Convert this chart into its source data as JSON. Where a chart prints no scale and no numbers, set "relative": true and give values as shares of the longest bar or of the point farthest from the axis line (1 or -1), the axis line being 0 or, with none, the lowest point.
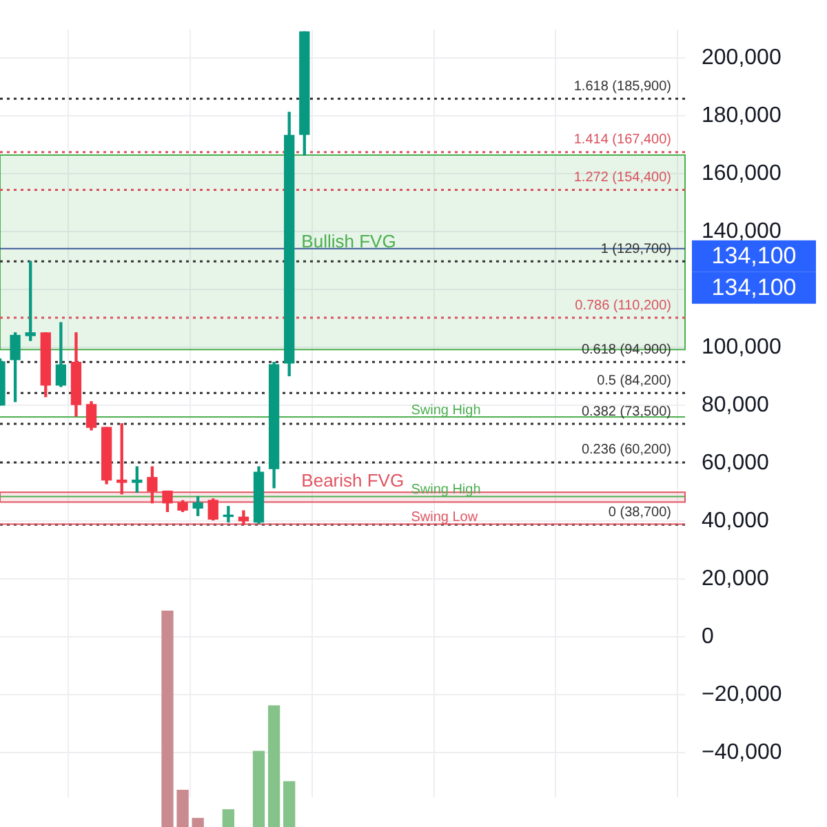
{
  "chart_data": [
    {
      "type": "candlestick",
      "categories": [
        null,
        null,
        null,
        null,
        null,
        null,
        null,
        null,
        null,
        null,
        null,
        null,
        null,
        null,
        null,
        null,
        null,
        null,
        null,
        null,
        null,
        null,
        null,
        null,
        null,
        null,
        null,
        null,
        null,
        null,
        null,
        null,
        null,
        null,
        null,
        null,
        null,
        null,
        null,
        null,
        null,
        null,
        null,
        null,
        null,
        null
      ],
      "ohlc": [
        [
          80000,
          96000,
          80000,
          95000
        ],
        [
          95700,
          105000,
          81200,
          104100
        ],
        [
          104000,
          129700,
          102300,
          105000
        ],
        [
          105000,
          105000,
          82900,
          86900
        ],
        [
          86900,
          108500,
          86400,
          93900
        ],
        [
          94800,
          105000,
          76200,
          80200
        ],
        [
          80200,
          81200,
          71400,
          72300
        ],
        [
          72300,
          72300,
          52800,
          54100
        ],
        [
          54100,
          73600,
          49300,
          53300
        ],
        [
          53300,
          58700,
          49900,
          54100
        ],
        [
          55000,
          58700,
          46200,
          50300
        ],
        [
          50300,
          50300,
          43200,
          46200
        ],
        [
          46200,
          47000,
          43200,
          43700
        ],
        [
          44400,
          48400,
          41800,
          46200
        ],
        [
          47100,
          47600,
          40300,
          40600
        ],
        [
          41500,
          45000,
          39600,
          42000
        ],
        [
          41300,
          43500,
          38700,
          40000
        ],
        [
          39600,
          58700,
          39100,
          56800
        ],
        [
          58000,
          94800,
          51400,
          94000
        ],
        [
          94500,
          181200,
          90100,
          173200
        ],
        [
          173500,
          209000,
          166400,
          209000
        ],
        null,
        null,
        null,
        null,
        null,
        null,
        null,
        null,
        null,
        null,
        null,
        null,
        null,
        null,
        null,
        null,
        null,
        null,
        null,
        null,
        null,
        null,
        null,
        null,
        null
      ],
      "colors": [
        "#089981",
        "#089981",
        "#089981",
        "#f23645",
        "#089981",
        "#f23645",
        "#f23645",
        "#f23645",
        "#f23645",
        "#089981",
        "#f23645",
        "#f23645",
        "#f23645",
        "#089981",
        "#f23645",
        "#089981",
        "#f23645",
        "#089981",
        "#089981",
        "#089981",
        "#089981",
        null,
        null,
        null,
        null,
        null,
        null,
        null,
        null,
        null,
        null,
        null,
        null,
        null,
        null,
        null,
        null,
        null,
        null,
        null,
        null,
        null,
        null,
        null,
        null,
        null
      ],
      "ylim": [
        -55500,
        209700
      ],
      "yticks": [
        {
          "value": -40000,
          "label": "−40,000"
        },
        {
          "value": -20000,
          "label": "−20,000"
        },
        0,
        {
          "value": 20000,
          "label": "20,000"
        },
        {
          "value": 40000,
          "label": "40,000"
        },
        {
          "value": 60000,
          "label": "60,000"
        },
        {
          "value": 80000,
          "label": "80,000"
        },
        {
          "value": 100000,
          "label": "100,000"
        },
        {
          "value": 120000,
          "label": null
        },
        {
          "value": 140000,
          "label": "140,000"
        },
        {
          "value": 160000,
          "label": "160,000"
        },
        {
          "value": 180000,
          "label": "180,000"
        },
        {
          "value": 200000,
          "label": "200,000"
        }
      ],
      "tick_labels": "y",
      "grid": true,
      "bands": [
        {
          "axis": "y",
          "from": 99200,
          "to": 166400,
          "label": "Bullish FVG",
          "color": "#4caf50"
        },
        {
          "axis": "y",
          "from": 46500,
          "to": 49900,
          "label": "Bearish FVG",
          "color": "#e05562"
        }
      ],
      "ref_lines": [
        {
          "axis": "y",
          "value": 185900,
          "label": "1.618 (185,900)",
          "color": "#333333",
          "line_style": "dotted"
        },
        {
          "axis": "y",
          "value": 167400,
          "label": "1.414 (167,400)",
          "color": "#d9535f",
          "line_style": "dotted"
        },
        {
          "axis": "y",
          "value": 154400,
          "label": "1.272 (154,400)",
          "color": "#d9535f",
          "line_style": "dotted"
        },
        {
          "axis": "y",
          "value": 129700,
          "label": "1 (129,700)",
          "color": "#333333",
          "line_style": "dotted"
        },
        {
          "axis": "y",
          "value": 110200,
          "label": "0.786 (110,200)",
          "color": "#d9535f",
          "line_style": "dotted"
        },
        {
          "axis": "y",
          "value": 94900,
          "label": "0.618 (94,900)",
          "color": "#333333",
          "line_style": "dotted"
        },
        {
          "axis": "y",
          "value": 84200,
          "label": "0.5 (84,200)",
          "color": "#333333",
          "line_style": "dotted"
        },
        {
          "axis": "y",
          "value": 73500,
          "label": "0.382 (73,500)",
          "color": "#333333",
          "line_style": "dotted"
        },
        {
          "axis": "y",
          "value": 60200,
          "label": "0.236 (60,200)",
          "color": "#333333",
          "line_style": "dotted"
        },
        {
          "axis": "y",
          "value": 38700,
          "label": "0 (38,700)",
          "color": "#333333",
          "line_style": "dotted"
        },
        {
          "axis": "y",
          "value": 75900,
          "label": "Swing High",
          "color": "#4caf50",
          "line_style": "solid"
        },
        {
          "axis": "y",
          "value": 48400,
          "label": "Swing High",
          "color": "#4caf50",
          "line_style": "solid"
        },
        {
          "axis": "y",
          "value": 38900,
          "label": "Swing Low",
          "color": "#e05562",
          "line_style": "solid"
        },
        {
          "axis": "y",
          "value": 134100,
          "color": "#3d5a98",
          "line_style": "solid"
        }
      ],
      "annotations": [
        "134,100",
        "134,100"
      ]
    },
    {
      "type": "bar",
      "relative": true,
      "categories": [
        null,
        null,
        null,
        null,
        null,
        null,
        null,
        null,
        null,
        null,
        null,
        null,
        null,
        null,
        null,
        null,
        null,
        null,
        null,
        null,
        null,
        null,
        null,
        null,
        null,
        null,
        null,
        null,
        null,
        null,
        null,
        null,
        null,
        null,
        null,
        null,
        null,
        null,
        null,
        null,
        null,
        null,
        null,
        null,
        null,
        null
      ],
      "values": [
        null,
        null,
        null,
        null,
        null,
        null,
        null,
        null,
        null,
        null,
        null,
        1,
        0.17,
        0.04,
        null,
        0.08,
        null,
        0.35,
        0.56,
        0.21,
        null,
        null,
        null,
        null,
        null,
        null,
        null,
        null,
        null,
        null,
        null,
        null,
        null,
        null,
        null,
        null,
        null,
        null,
        null,
        null,
        null,
        null,
        null,
        null,
        null,
        null
      ],
      "colors": [
        null,
        null,
        null,
        null,
        null,
        null,
        null,
        null,
        null,
        null,
        null,
        "#c98b8f",
        "#c98b8f",
        "#c98b8f",
        null,
        "#86c38a",
        null,
        "#86c38a",
        "#86c38a",
        "#86c38a",
        null,
        null,
        null,
        null,
        null,
        null,
        null,
        null,
        null,
        null,
        null,
        null,
        null,
        null,
        null,
        null,
        null,
        null,
        null,
        null,
        null,
        null,
        null,
        null,
        null,
        null
      ]
    }
  ]
}
